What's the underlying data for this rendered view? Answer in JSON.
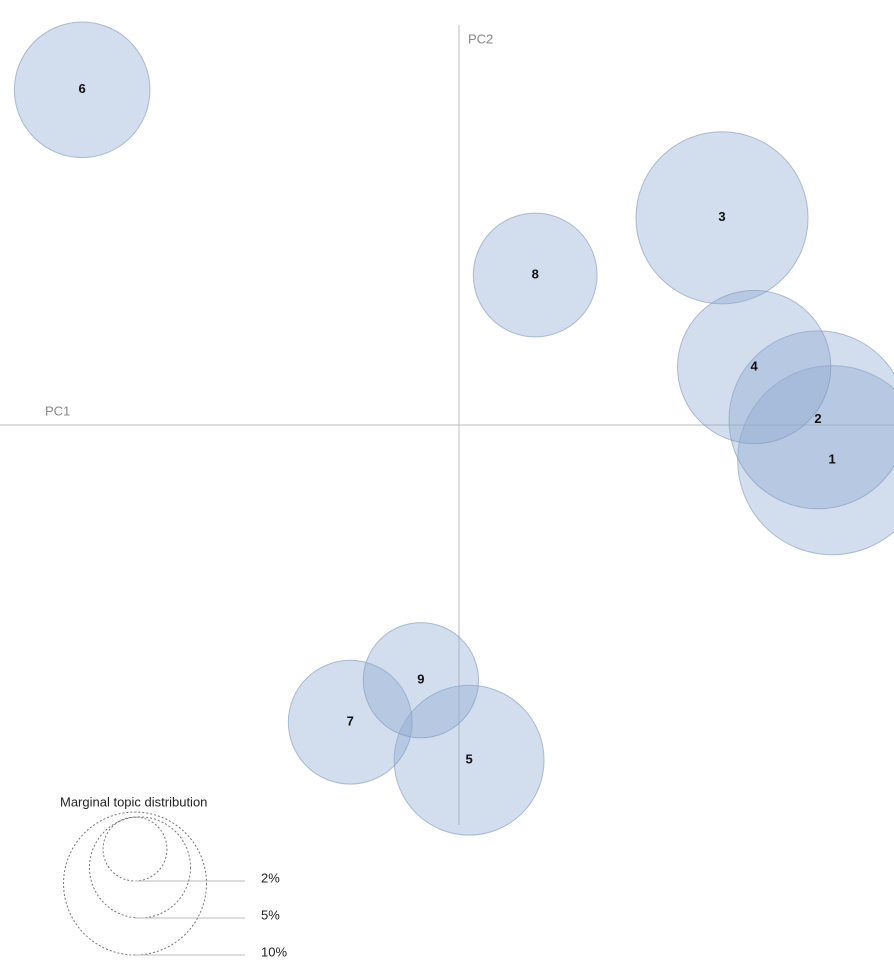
{
  "chart_data": {
    "type": "bubble",
    "x_label": "PC1",
    "y_label": "PC2",
    "xlim": [
      -1,
      1
    ],
    "ylim": [
      -1,
      1
    ],
    "color": "#8eaad3",
    "labels": [
      "1",
      "2",
      "3",
      "4",
      "5",
      "6",
      "7",
      "8",
      "9"
    ],
    "x": [
      0.813,
      0.782,
      0.573,
      0.643,
      0.022,
      -0.821,
      -0.237,
      0.166,
      -0.083
    ],
    "values": [
      -0.088,
      0.013,
      0.518,
      0.145,
      -0.838,
      0.838,
      -0.743,
      0.375,
      -0.638
    ],
    "sizes": [
      17.5,
      15.5,
      14.5,
      11.5,
      11,
      9,
      7.5,
      7.5,
      6.5
    ],
    "size_legend": {
      "title": "Marginal topic distribution",
      "ticks": [
        {
          "value": 2,
          "label": "2%"
        },
        {
          "value": 5,
          "label": "5%"
        },
        {
          "value": 10,
          "label": "10%"
        }
      ]
    }
  }
}
